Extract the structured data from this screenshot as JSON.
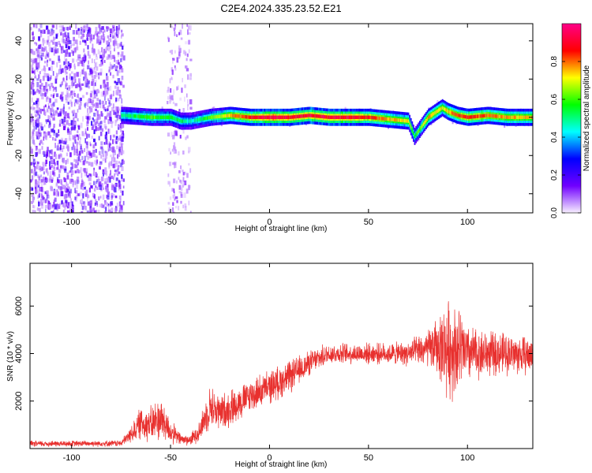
{
  "figure": {
    "title": "C2E4.2024.335.23.52.E21"
  },
  "chart_data": [
    {
      "type": "heatmap",
      "xlabel": "Height of straight line (km)",
      "ylabel": "Frequency (Hz)",
      "xlim": [
        -121,
        133
      ],
      "ylim": [
        -50,
        49
      ],
      "x_ticks": [
        -100,
        -50,
        0,
        50,
        100
      ],
      "x_tick_labels": [
        "-100",
        "-50",
        "0",
        "50",
        "100"
      ],
      "y_ticks": [
        -40,
        -20,
        0,
        20,
        40
      ],
      "y_tick_labels": [
        "-40",
        "-20",
        "0",
        "20",
        "40"
      ],
      "colorbar": {
        "label": "Normalized spectral amplitude",
        "range": [
          0,
          1
        ],
        "ticks": [
          0,
          0.2,
          0.4,
          0.6,
          0.8
        ],
        "tick_labels": [
          "0.0",
          "0.2",
          "0.4",
          "0.6",
          "0.8"
        ],
        "colormap": [
          "#f8f0ff",
          "#7000ff",
          "#0000ff",
          "#00ffff",
          "#00ff00",
          "#ffff00",
          "#ff0000",
          "#ff0088"
        ]
      },
      "noise_regions_km": [
        [
          -121,
          -74
        ],
        [
          -52,
          -40
        ]
      ],
      "ridge": [
        {
          "x": -74,
          "freq": 1,
          "amp": 0.5
        },
        {
          "x": -60,
          "freq": 0,
          "amp": 0.6
        },
        {
          "x": -50,
          "freq": 0,
          "amp": 0.55
        },
        {
          "x": -45,
          "freq": -2,
          "amp": 0.5
        },
        {
          "x": -40,
          "freq": -2,
          "amp": 0.45
        },
        {
          "x": -30,
          "freq": 0,
          "amp": 0.6
        },
        {
          "x": -20,
          "freq": 1,
          "amp": 0.75
        },
        {
          "x": -10,
          "freq": 0,
          "amp": 0.85
        },
        {
          "x": 0,
          "freq": 0,
          "amp": 0.95
        },
        {
          "x": 10,
          "freq": 0,
          "amp": 0.9
        },
        {
          "x": 20,
          "freq": 1,
          "amp": 0.9
        },
        {
          "x": 30,
          "freq": 0,
          "amp": 0.9
        },
        {
          "x": 40,
          "freq": 0,
          "amp": 0.9
        },
        {
          "x": 50,
          "freq": 0,
          "amp": 0.85
        },
        {
          "x": 60,
          "freq": -1,
          "amp": 0.75
        },
        {
          "x": 70,
          "freq": -2,
          "amp": 0.7
        },
        {
          "x": 73,
          "freq": -10,
          "amp": 0.55
        },
        {
          "x": 80,
          "freq": 0,
          "amp": 0.75
        },
        {
          "x": 87,
          "freq": 5,
          "amp": 0.7
        },
        {
          "x": 90,
          "freq": 3,
          "amp": 0.75
        },
        {
          "x": 95,
          "freq": 1,
          "amp": 0.8
        },
        {
          "x": 100,
          "freq": 0,
          "amp": 0.85
        },
        {
          "x": 110,
          "freq": 1,
          "amp": 0.8
        },
        {
          "x": 120,
          "freq": 0,
          "amp": 0.75
        },
        {
          "x": 133,
          "freq": 0,
          "amp": 0.75
        }
      ]
    },
    {
      "type": "line",
      "xlabel": "Height of straight line (km)",
      "ylabel": "SNR (10 * v/v)",
      "xlim": [
        -121,
        133
      ],
      "ylim": [
        0,
        7800
      ],
      "x_ticks": [
        -100,
        -50,
        0,
        50,
        100
      ],
      "x_tick_labels": [
        "-100",
        "-50",
        "0",
        "50",
        "100"
      ],
      "y_ticks": [
        2000,
        4000,
        6000
      ],
      "y_tick_labels": [
        "2000",
        "4000",
        "6000"
      ],
      "series": [
        {
          "color": "#e8302e",
          "envelope": [
            {
              "x": -121,
              "mean": 200,
              "spread": 150
            },
            {
              "x": -75,
              "mean": 220,
              "spread": 150
            },
            {
              "x": -70,
              "mean": 600,
              "spread": 400
            },
            {
              "x": -65,
              "mean": 1100,
              "spread": 800
            },
            {
              "x": -60,
              "mean": 1000,
              "spread": 900
            },
            {
              "x": -55,
              "mean": 1300,
              "spread": 1100
            },
            {
              "x": -50,
              "mean": 700,
              "spread": 600
            },
            {
              "x": -45,
              "mean": 400,
              "spread": 300
            },
            {
              "x": -40,
              "mean": 350,
              "spread": 250
            },
            {
              "x": -35,
              "mean": 800,
              "spread": 600
            },
            {
              "x": -30,
              "mean": 1800,
              "spread": 1000
            },
            {
              "x": -25,
              "mean": 1500,
              "spread": 900
            },
            {
              "x": -20,
              "mean": 1700,
              "spread": 900
            },
            {
              "x": -10,
              "mean": 2200,
              "spread": 800
            },
            {
              "x": 0,
              "mean": 2600,
              "spread": 800
            },
            {
              "x": 10,
              "mean": 3000,
              "spread": 800
            },
            {
              "x": 20,
              "mean": 3600,
              "spread": 600
            },
            {
              "x": 30,
              "mean": 4000,
              "spread": 500
            },
            {
              "x": 40,
              "mean": 4000,
              "spread": 500
            },
            {
              "x": 50,
              "mean": 4000,
              "spread": 500
            },
            {
              "x": 60,
              "mean": 4000,
              "spread": 500
            },
            {
              "x": 70,
              "mean": 4000,
              "spread": 600
            },
            {
              "x": 80,
              "mean": 4200,
              "spread": 900
            },
            {
              "x": 85,
              "mean": 4300,
              "spread": 1400
            },
            {
              "x": 90,
              "mean": 4200,
              "spread": 2400
            },
            {
              "x": 95,
              "mean": 4200,
              "spread": 2200
            },
            {
              "x": 100,
              "mean": 4000,
              "spread": 1400
            },
            {
              "x": 110,
              "mean": 4000,
              "spread": 1100
            },
            {
              "x": 120,
              "mean": 4000,
              "spread": 1000
            },
            {
              "x": 133,
              "mean": 3900,
              "spread": 900
            }
          ]
        }
      ]
    }
  ]
}
